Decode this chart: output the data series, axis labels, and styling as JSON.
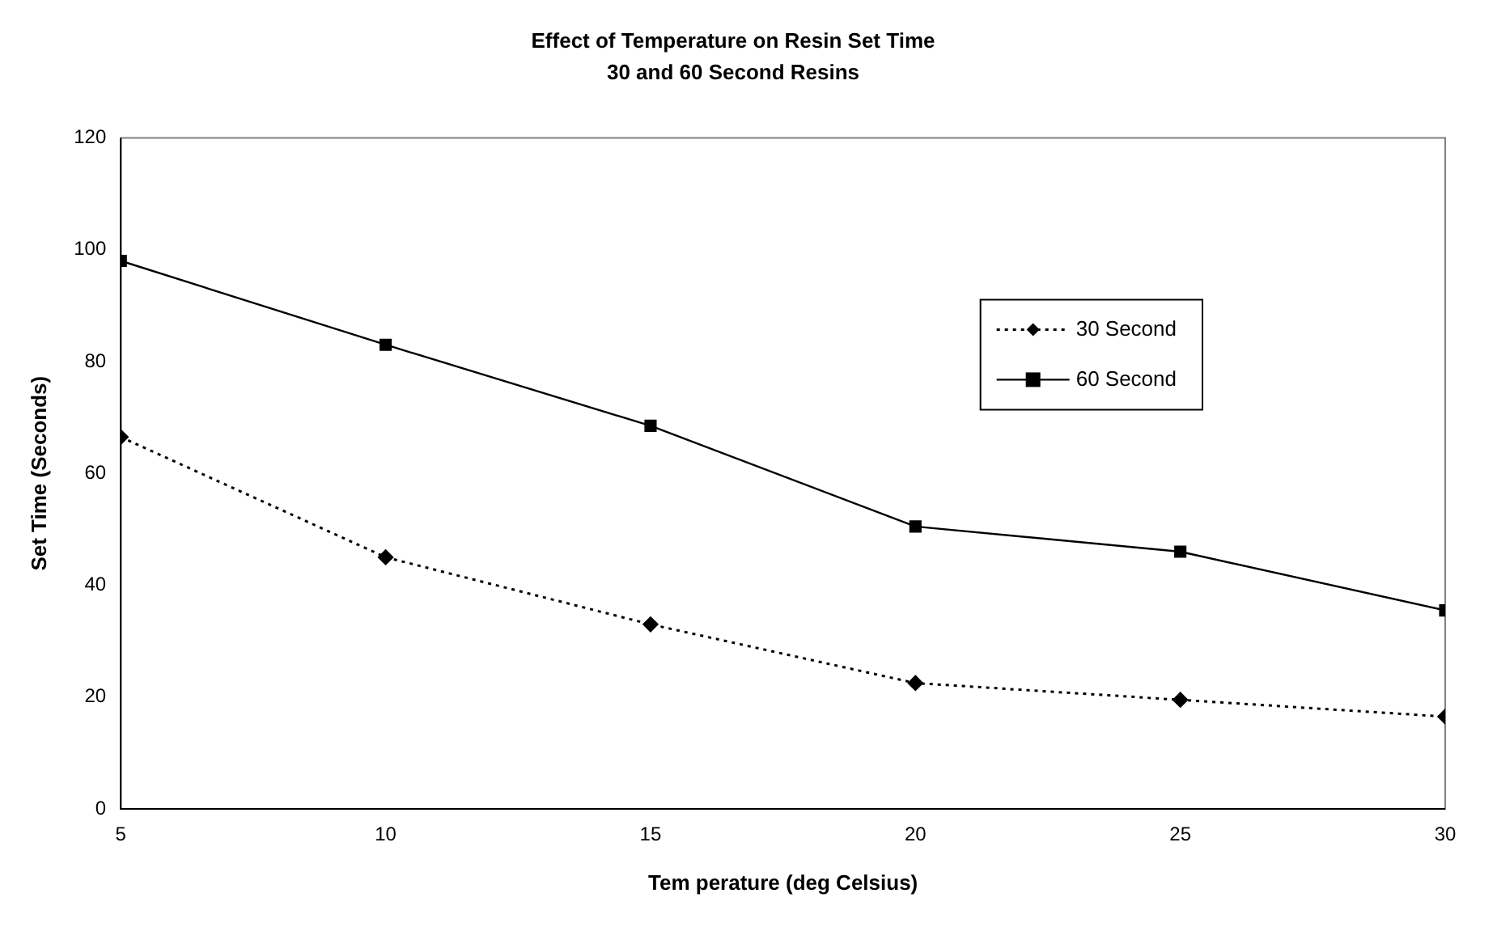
{
  "chart_data": {
    "type": "line",
    "title": "Effect of Temperature on Resin Set Time",
    "subtitle": "30 and 60 Second Resins",
    "xlabel": "Tem perature (deg Celsius)",
    "ylabel": "Set Time (Seconds)",
    "x": [
      5,
      10,
      15,
      20,
      25,
      30
    ],
    "series": [
      {
        "name": "30 Second",
        "color": "#000000",
        "values": [
          66.5,
          45,
          33,
          22.5,
          19.5,
          16.5
        ],
        "marker": "diamond",
        "line_style": "dotted"
      },
      {
        "name": "60 Second",
        "color": "#000000",
        "values": [
          98,
          83,
          68.5,
          50.5,
          46,
          35.5
        ],
        "marker": "square",
        "line_style": "solid"
      }
    ],
    "xlim": [
      5,
      30
    ],
    "xticks": [
      5,
      10,
      15,
      20,
      25,
      30
    ],
    "ylim": [
      0,
      120
    ],
    "yticks": [
      0,
      20,
      40,
      60,
      80,
      100,
      120
    ],
    "grid": false,
    "legend": "right"
  }
}
